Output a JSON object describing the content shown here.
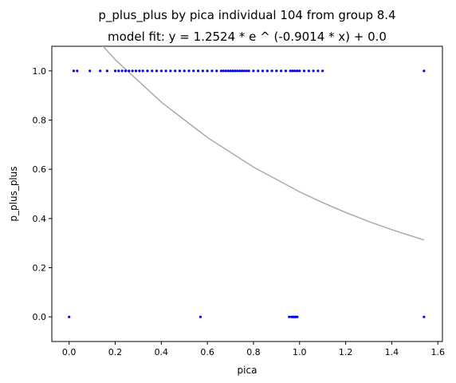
{
  "chart_data": {
    "type": "scatter",
    "title_line1": "p_plus_plus by pica individual 104 from group 8.4",
    "title_line2": "model fit: y = 1.2524 * e ^ (-0.9014 * x) + 0.0",
    "xlabel": "pica",
    "ylabel": "p_plus_plus",
    "xlim": [
      -0.075,
      1.62
    ],
    "ylim": [
      -0.1,
      1.1
    ],
    "xticks": [
      0.0,
      0.2,
      0.4,
      0.6,
      0.8,
      1.0,
      1.2,
      1.4,
      1.6
    ],
    "xtick_labels": [
      "0.0",
      "0.2",
      "0.4",
      "0.6",
      "0.8",
      "1.0",
      "1.2",
      "1.4",
      "1.6"
    ],
    "yticks": [
      0.0,
      0.2,
      0.4,
      0.6,
      0.8,
      1.0
    ],
    "ytick_labels": [
      "0.0",
      "0.2",
      "0.4",
      "0.6",
      "0.8",
      "1.0"
    ],
    "grid": false,
    "point_color": "#0000ff",
    "fit_color": "#aaaaaa",
    "fit": {
      "a": 1.2524,
      "b": -0.9014,
      "c": 0.0
    },
    "fit_x": [
      0.0,
      0.2,
      0.4,
      0.6,
      0.8,
      1.0,
      1.1,
      1.2,
      1.3,
      1.4,
      1.54
    ],
    "series": [
      {
        "points": [
          [
            0.0,
            0.0
          ],
          [
            0.57,
            0.0
          ],
          [
            0.955,
            0.0
          ],
          [
            0.965,
            0.0
          ],
          [
            0.97,
            0.0
          ],
          [
            0.975,
            0.0
          ],
          [
            0.98,
            0.0
          ],
          [
            0.985,
            0.0
          ],
          [
            0.99,
            0.0
          ],
          [
            1.54,
            0.0
          ],
          [
            0.02,
            1.0
          ],
          [
            0.035,
            1.0
          ],
          [
            0.09,
            1.0
          ],
          [
            0.135,
            1.0
          ],
          [
            0.165,
            1.0
          ],
          [
            0.2,
            1.0
          ],
          [
            0.215,
            1.0
          ],
          [
            0.23,
            1.0
          ],
          [
            0.245,
            1.0
          ],
          [
            0.26,
            1.0
          ],
          [
            0.275,
            1.0
          ],
          [
            0.29,
            1.0
          ],
          [
            0.305,
            1.0
          ],
          [
            0.32,
            1.0
          ],
          [
            0.34,
            1.0
          ],
          [
            0.36,
            1.0
          ],
          [
            0.38,
            1.0
          ],
          [
            0.4,
            1.0
          ],
          [
            0.42,
            1.0
          ],
          [
            0.44,
            1.0
          ],
          [
            0.46,
            1.0
          ],
          [
            0.48,
            1.0
          ],
          [
            0.5,
            1.0
          ],
          [
            0.52,
            1.0
          ],
          [
            0.54,
            1.0
          ],
          [
            0.56,
            1.0
          ],
          [
            0.58,
            1.0
          ],
          [
            0.6,
            1.0
          ],
          [
            0.62,
            1.0
          ],
          [
            0.64,
            1.0
          ],
          [
            0.66,
            1.0
          ],
          [
            0.67,
            1.0
          ],
          [
            0.68,
            1.0
          ],
          [
            0.69,
            1.0
          ],
          [
            0.7,
            1.0
          ],
          [
            0.71,
            1.0
          ],
          [
            0.72,
            1.0
          ],
          [
            0.73,
            1.0
          ],
          [
            0.74,
            1.0
          ],
          [
            0.75,
            1.0
          ],
          [
            0.76,
            1.0
          ],
          [
            0.77,
            1.0
          ],
          [
            0.78,
            1.0
          ],
          [
            0.8,
            1.0
          ],
          [
            0.82,
            1.0
          ],
          [
            0.84,
            1.0
          ],
          [
            0.86,
            1.0
          ],
          [
            0.88,
            1.0
          ],
          [
            0.9,
            1.0
          ],
          [
            0.92,
            1.0
          ],
          [
            0.94,
            1.0
          ],
          [
            0.96,
            1.0
          ],
          [
            0.97,
            1.0
          ],
          [
            0.98,
            1.0
          ],
          [
            0.99,
            1.0
          ],
          [
            1.0,
            1.0
          ],
          [
            1.02,
            1.0
          ],
          [
            1.04,
            1.0
          ],
          [
            1.06,
            1.0
          ],
          [
            1.08,
            1.0
          ],
          [
            1.1,
            1.0
          ],
          [
            1.54,
            1.0
          ]
        ]
      }
    ]
  }
}
